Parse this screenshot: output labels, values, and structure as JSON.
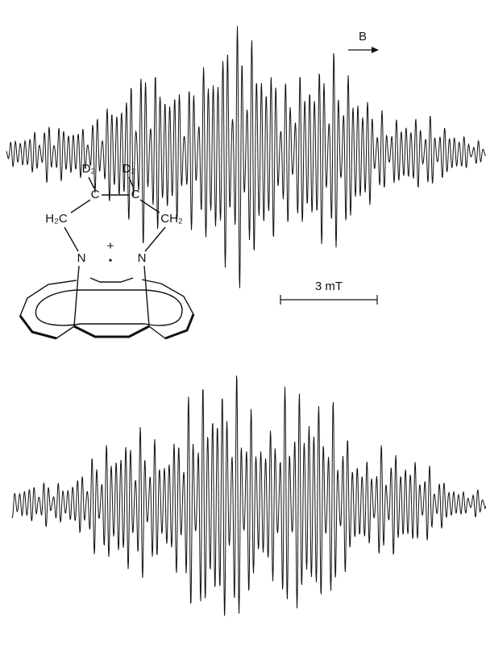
{
  "figure": {
    "field_label": "B",
    "scale_bar_label": "3 mT",
    "structure": {
      "labels": [
        "D₂",
        "D₂",
        "C",
        "C",
        "H₂C",
        "CH₂",
        "N",
        "N",
        "+"
      ]
    }
  }
}
